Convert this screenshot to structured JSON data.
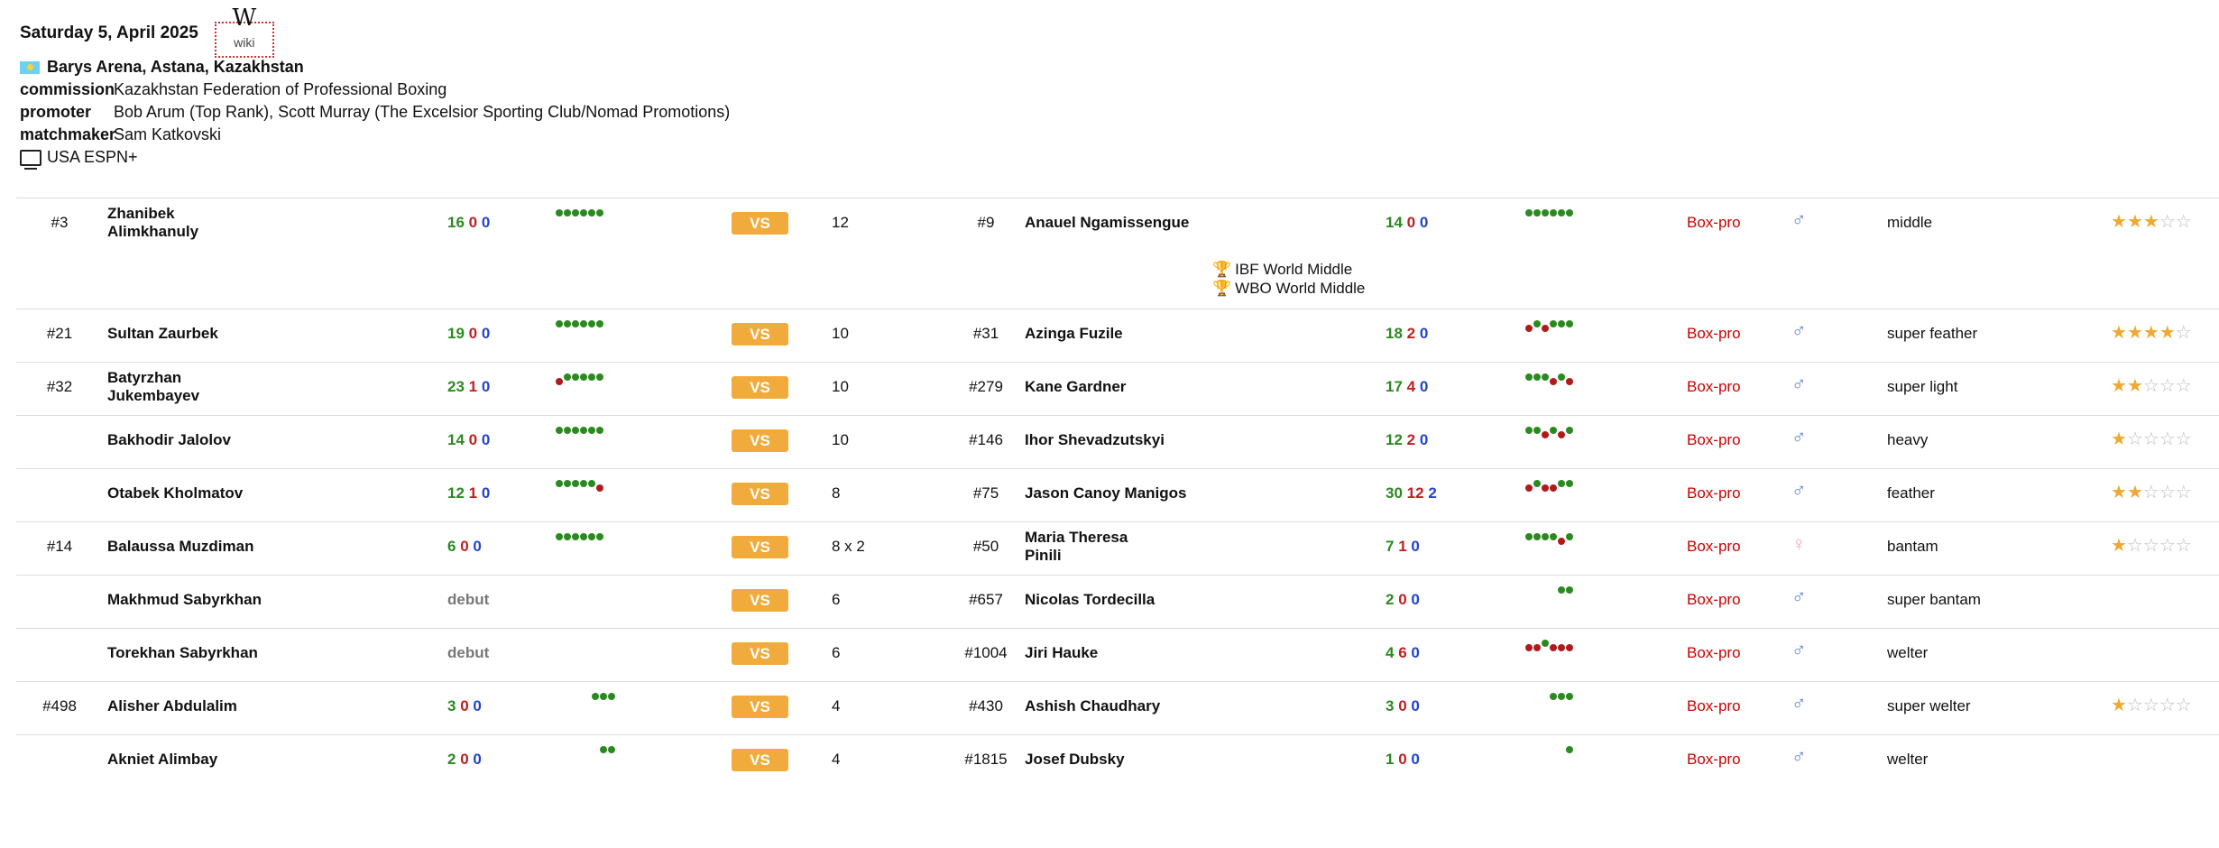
{
  "event": {
    "date": "Saturday 5, April 2025",
    "wiki_label": "wiki",
    "wiki_icon": "W",
    "venue": "Barys Arena, Astana, Kazakhstan",
    "commission_key": "commission",
    "commission": "Kazakhstan Federation of Professional Boxing",
    "promoter_key": "promoter",
    "promoter": "Bob Arum (Top Rank), Scott Murray (The Excelsior Sporting Club/Nomad Promotions)",
    "matchmaker_key": "matchmaker",
    "matchmaker": "Sam Katkovski",
    "tv": "USA ESPN+"
  },
  "vs_label": "VS",
  "sport_label": "Box-pro",
  "fights": [
    {
      "rank1": "#3",
      "name1": [
        "Zhanibek",
        "Alimkhanuly"
      ],
      "rec1": [
        "16",
        "0",
        "0"
      ],
      "form1": "WWWWWW",
      "rounds": "12",
      "rank2": "#9",
      "name2": [
        "Anauel Ngamissengue"
      ],
      "rec2": [
        "14",
        "0",
        "0"
      ],
      "form2": "WWWWWW",
      "gender": "male",
      "weight": "middle",
      "stars": 3,
      "titles": [
        "IBF World Middle",
        "WBO World Middle"
      ]
    },
    {
      "rank1": "#21",
      "name1": [
        "Sultan Zaurbek"
      ],
      "rec1": [
        "19",
        "0",
        "0"
      ],
      "form1": "WWWWWW",
      "rounds": "10",
      "rank2": "#31",
      "name2": [
        "Azinga Fuzile"
      ],
      "rec2": [
        "18",
        "2",
        "0"
      ],
      "form2": "LWLWWW",
      "gender": "male",
      "weight": "super feather",
      "stars": 4
    },
    {
      "rank1": "#32",
      "name1": [
        "Batyrzhan",
        "Jukembayev"
      ],
      "rec1": [
        "23",
        "1",
        "0"
      ],
      "form1": "LWWWWW",
      "rounds": "10",
      "rank2": "#279",
      "name2": [
        "Kane Gardner"
      ],
      "rec2": [
        "17",
        "4",
        "0"
      ],
      "form2": "WWWLWL",
      "gender": "male",
      "weight": "super light",
      "stars": 2
    },
    {
      "rank1": "",
      "name1": [
        "Bakhodir Jalolov"
      ],
      "rec1": [
        "14",
        "0",
        "0"
      ],
      "form1": "WWWWWW",
      "rounds": "10",
      "rank2": "#146",
      "name2": [
        "Ihor Shevadzutskyi"
      ],
      "rec2": [
        "12",
        "2",
        "0"
      ],
      "form2": "WWLWLW",
      "gender": "male",
      "weight": "heavy",
      "stars": 1
    },
    {
      "rank1": "",
      "name1": [
        "Otabek Kholmatov"
      ],
      "rec1": [
        "12",
        "1",
        "0"
      ],
      "form1": "WWWWWL",
      "rounds": "8",
      "rank2": "#75",
      "name2": [
        "Jason Canoy Manigos"
      ],
      "rec2": [
        "30",
        "12",
        "2"
      ],
      "form2": "LWLLWW",
      "gender": "male",
      "weight": "feather",
      "stars": 2
    },
    {
      "rank1": "#14",
      "name1": [
        "Balaussa Muzdiman"
      ],
      "rec1": [
        "6",
        "0",
        "0"
      ],
      "form1": "WWWWWW",
      "rounds": "8 x 2",
      "rank2": "#50",
      "name2": [
        "Maria Theresa",
        "Pinili"
      ],
      "rec2": [
        "7",
        "1",
        "0"
      ],
      "form2": "WWWWLW",
      "gender": "female",
      "weight": "bantam",
      "stars": 1
    },
    {
      "rank1": "",
      "name1": [
        "Makhmud Sabyrkhan"
      ],
      "debut1": "debut",
      "form1": "",
      "rounds": "6",
      "rank2": "#657",
      "name2": [
        "Nicolas Tordecilla"
      ],
      "rec2": [
        "2",
        "0",
        "0"
      ],
      "form2": "WW",
      "gender": "male",
      "weight": "super bantam",
      "stars": 0
    },
    {
      "rank1": "",
      "name1": [
        "Torekhan Sabyrkhan"
      ],
      "debut1": "debut",
      "form1": "",
      "rounds": "6",
      "rank2": "#1004",
      "name2": [
        "Jiri Hauke"
      ],
      "rec2": [
        "4",
        "6",
        "0"
      ],
      "form2": "LLWLLL",
      "gender": "male",
      "weight": "welter",
      "stars": 0
    },
    {
      "rank1": "#498",
      "name1": [
        "Alisher Abdulalim"
      ],
      "rec1": [
        "3",
        "0",
        "0"
      ],
      "form1": "WWW",
      "rounds": "4",
      "rank2": "#430",
      "name2": [
        "Ashish Chaudhary"
      ],
      "rec2": [
        "3",
        "0",
        "0"
      ],
      "form2": "WWW",
      "gender": "male",
      "weight": "super welter",
      "stars": 1
    },
    {
      "rank1": "",
      "name1": [
        "Akniet Alimbay"
      ],
      "rec1": [
        "2",
        "0",
        "0"
      ],
      "form1": "WW",
      "rounds": "4",
      "rank2": "#1815",
      "name2": [
        "Josef Dubsky"
      ],
      "rec2": [
        "1",
        "0",
        "0"
      ],
      "form2": "W",
      "gender": "male",
      "weight": "welter",
      "stars": 0
    }
  ]
}
